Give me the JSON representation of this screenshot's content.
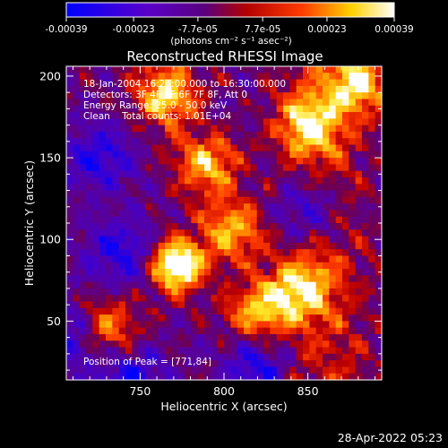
{
  "window": {
    "title": "Reconstructed RHESSI Image",
    "timestamp_footer": "28-Apr-2022 05:23"
  },
  "colorbar": {
    "ticks": [
      "-0.00039",
      "-0.00023",
      "-7.7e-05",
      "7.7e-05",
      "0.00023",
      "0.00039"
    ],
    "tick_values": [
      -0.00039,
      -0.00023,
      -7.7e-05,
      7.7e-05,
      0.00023,
      0.00039
    ],
    "range": [
      -0.00039,
      0.00039
    ],
    "units_label": "(photons cm⁻² s⁻¹ asec⁻²)",
    "colormap": "blue-purple-red-yellow-white (RHESSI image map)"
  },
  "annotations": {
    "time_range": "18-Jan-2004 16:24:00.000 to 16:30:00.000",
    "detectors": "Detectors: 3F 4F 5F 6F 7F 8F, Att 0",
    "energy": "Energy Range: 25.0 - 50.0 keV",
    "clean": "Clean    Total counts: 1.01E+04",
    "peak": "Position of Peak = [771,84]"
  },
  "chart_data": {
    "type": "heatmap",
    "title": "Reconstructed RHESSI Image",
    "xlabel": "Heliocentric X (arcsec)",
    "ylabel": "Heliocentric Y (arcsec)",
    "xlim": [
      706,
      894
    ],
    "ylim": [
      14,
      206
    ],
    "xticks": [
      750,
      800,
      850
    ],
    "yticks": [
      50,
      100,
      150,
      200
    ],
    "clim": [
      -0.00039,
      0.00039
    ],
    "peak": [
      771,
      84
    ],
    "bright_regions_xy": [
      [
        772,
        84
      ],
      [
        765,
        190
      ],
      [
        820,
        55
      ],
      [
        845,
        70
      ],
      [
        850,
        170
      ],
      [
        880,
        195
      ],
      [
        730,
        45
      ],
      [
        790,
        145
      ],
      [
        805,
        105
      ]
    ],
    "dark_regions_xy": [
      [
        725,
        150
      ],
      [
        738,
        92
      ],
      [
        820,
        22
      ],
      [
        745,
        15
      ],
      [
        712,
        40
      ],
      [
        850,
        118
      ]
    ]
  }
}
